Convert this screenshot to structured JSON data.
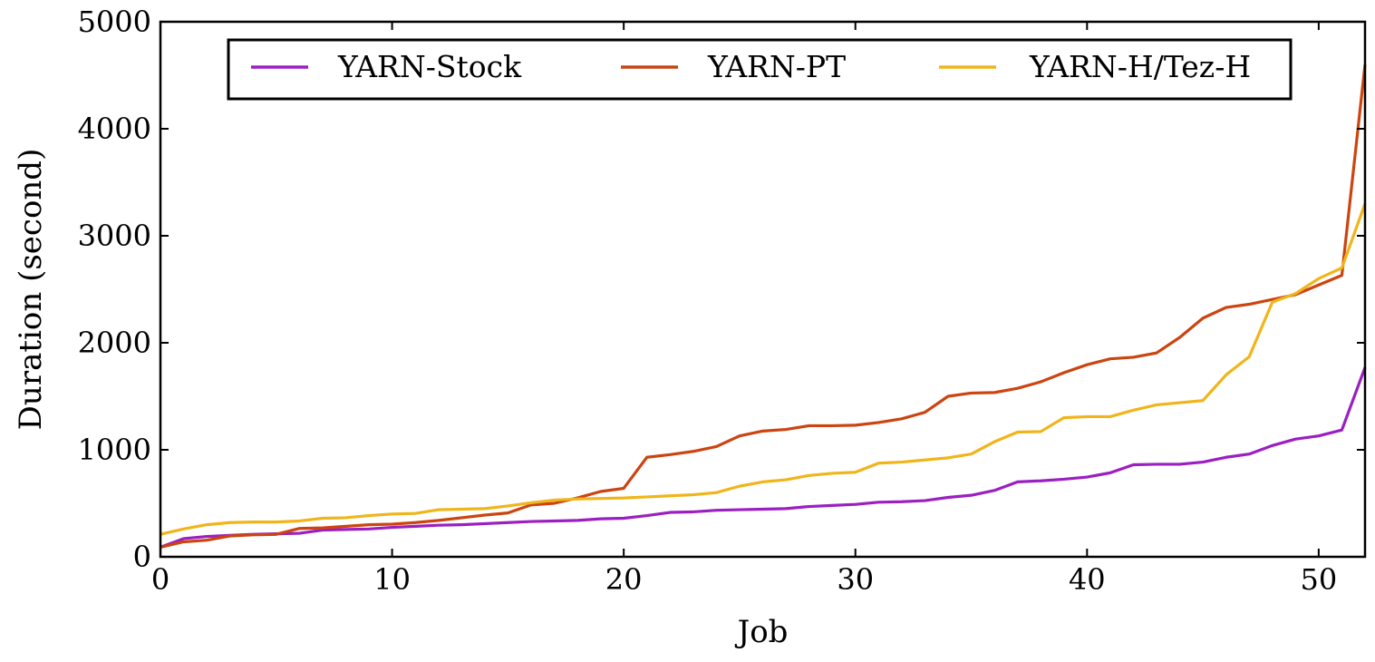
{
  "chart_data": {
    "type": "line",
    "title": "",
    "xlabel": "Job",
    "ylabel": "Duration (second)",
    "xlim": [
      0,
      52
    ],
    "ylim": [
      0,
      5000
    ],
    "xticks": [
      0,
      10,
      20,
      30,
      40,
      50
    ],
    "yticks": [
      0,
      1000,
      2000,
      3000,
      4000,
      5000
    ],
    "xtick_labels": [
      "0",
      "10",
      "20",
      "30",
      "40",
      "50"
    ],
    "ytick_labels": [
      "0",
      "1000",
      "2000",
      "3000",
      "4000",
      "5000"
    ],
    "grid": false,
    "legend_position": "top",
    "x": [
      0,
      1,
      2,
      3,
      4,
      5,
      6,
      7,
      8,
      9,
      10,
      11,
      12,
      13,
      14,
      15,
      16,
      17,
      18,
      19,
      20,
      21,
      22,
      23,
      24,
      25,
      26,
      27,
      28,
      29,
      30,
      31,
      32,
      33,
      34,
      35,
      36,
      37,
      38,
      39,
      40,
      41,
      42,
      43,
      44,
      45,
      46,
      47,
      48,
      49,
      50,
      51,
      52
    ],
    "series": [
      {
        "name": "YARN-Stock",
        "color": "#9b1fc1",
        "values": [
          90,
          170,
          190,
          200,
          210,
          215,
          220,
          250,
          255,
          260,
          275,
          285,
          295,
          300,
          310,
          320,
          330,
          335,
          340,
          355,
          360,
          385,
          415,
          420,
          435,
          440,
          445,
          450,
          470,
          480,
          490,
          510,
          515,
          525,
          555,
          575,
          620,
          700,
          710,
          725,
          745,
          785,
          860,
          865,
          865,
          885,
          930,
          960,
          1040,
          1100,
          1130,
          1185,
          1770
        ]
      },
      {
        "name": "YARN-PT",
        "color": "#cc4410",
        "values": [
          90,
          140,
          155,
          195,
          205,
          210,
          265,
          270,
          285,
          300,
          305,
          320,
          340,
          365,
          390,
          410,
          485,
          500,
          550,
          610,
          640,
          930,
          955,
          985,
          1030,
          1130,
          1175,
          1190,
          1225,
          1225,
          1230,
          1255,
          1290,
          1350,
          1500,
          1530,
          1535,
          1575,
          1635,
          1720,
          1795,
          1850,
          1865,
          1905,
          2050,
          2230,
          2330,
          2360,
          2405,
          2450,
          2540,
          2630,
          4600
        ]
      },
      {
        "name": "YARN-H/Tez-H",
        "color": "#f0b51a",
        "values": [
          210,
          260,
          300,
          320,
          325,
          325,
          335,
          360,
          365,
          385,
          400,
          405,
          440,
          445,
          450,
          475,
          505,
          530,
          540,
          545,
          550,
          560,
          570,
          580,
          600,
          660,
          700,
          720,
          760,
          780,
          790,
          875,
          885,
          905,
          925,
          960,
          1075,
          1165,
          1170,
          1300,
          1310,
          1310,
          1370,
          1420,
          1440,
          1460,
          1700,
          1870,
          2380,
          2460,
          2600,
          2700,
          3300
        ]
      }
    ]
  }
}
